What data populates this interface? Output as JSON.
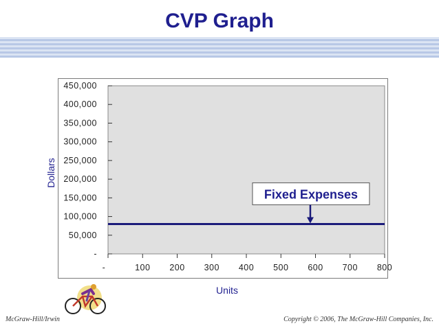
{
  "slide": {
    "title": "CVP Graph",
    "footer_left": "McGraw-Hill/Irwin",
    "footer_right": "Copyright © 2006, The McGraw-Hill Companies, Inc."
  },
  "chart_data": {
    "type": "line",
    "title": "",
    "xlabel": "Units",
    "ylabel": "Dollars",
    "xlim": [
      0,
      800
    ],
    "ylim": [
      0,
      450000
    ],
    "x_ticks": [
      0,
      100,
      200,
      300,
      400,
      500,
      600,
      700,
      800
    ],
    "x_tick_labels": [
      "-",
      "100",
      "200",
      "300",
      "400",
      "500",
      "600",
      "700",
      "800"
    ],
    "y_ticks": [
      0,
      50000,
      100000,
      150000,
      200000,
      250000,
      300000,
      350000,
      400000,
      450000
    ],
    "y_tick_labels": [
      "-",
      "50,000",
      "100,000",
      "150,000",
      "200,000",
      "250,000",
      "300,000",
      "350,000",
      "400,000",
      "450,000"
    ],
    "series": [
      {
        "x": [
          0,
          800
        ],
        "values": [
          80000,
          80000
        ],
        "color": "#1a1a7a"
      }
    ],
    "annotations": [
      {
        "text": "Fixed Expenses",
        "x": 585,
        "y": 80000
      }
    ],
    "plot_background": "#e0e0e0",
    "grid": false,
    "legend": "none"
  }
}
